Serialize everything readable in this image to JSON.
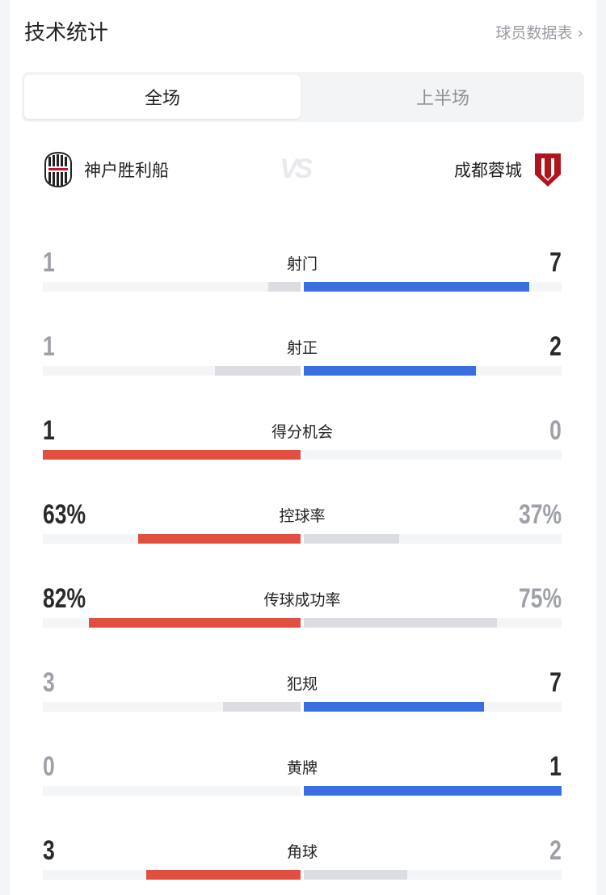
{
  "header": {
    "title": "技术统计",
    "player_stats_link": "球员数据表 ›"
  },
  "tabs": [
    {
      "label": "全场",
      "active": true
    },
    {
      "label": "上半场",
      "active": false
    }
  ],
  "teams": {
    "home": {
      "name": "神户胜利船",
      "logo": "vissel-kobe-crest"
    },
    "vs": "VS",
    "away": {
      "name": "成都蓉城",
      "logo": "chengdu-rongcheng-crest"
    }
  },
  "colors": {
    "home": "#e04f3f",
    "away": "#3b6fe0",
    "neutral": "#dcdde1",
    "track": "#f4f5f7"
  },
  "stats": [
    {
      "label": "射门",
      "home": "1",
      "away": "7",
      "home_fill": 0.125,
      "away_fill": 0.875,
      "leader": "away"
    },
    {
      "label": "射正",
      "home": "1",
      "away": "2",
      "home_fill": 0.333,
      "away_fill": 0.667,
      "leader": "away"
    },
    {
      "label": "得分机会",
      "home": "1",
      "away": "0",
      "home_fill": 1,
      "away_fill": 0,
      "leader": "home"
    },
    {
      "label": "控球率",
      "home": "63%",
      "away": "37%",
      "home_fill": 0.63,
      "away_fill": 0.37,
      "leader": "home"
    },
    {
      "label": "传球成功率",
      "home": "82%",
      "away": "75%",
      "home_fill": 0.82,
      "away_fill": 0.75,
      "leader": "home"
    },
    {
      "label": "犯规",
      "home": "3",
      "away": "7",
      "home_fill": 0.3,
      "away_fill": 0.7,
      "leader": "away"
    },
    {
      "label": "黄牌",
      "home": "0",
      "away": "1",
      "home_fill": 0,
      "away_fill": 1,
      "leader": "away"
    },
    {
      "label": "角球",
      "home": "3",
      "away": "2",
      "home_fill": 0.6,
      "away_fill": 0.4,
      "leader": "home"
    }
  ]
}
